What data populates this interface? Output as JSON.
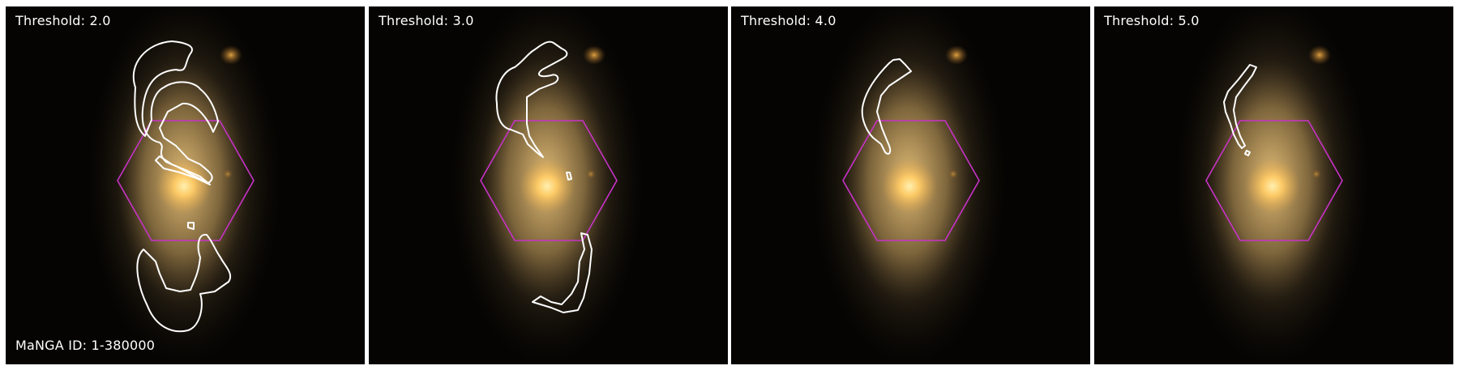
{
  "galaxy": {
    "manga_id_label": "MaNGA ID: 1-380000"
  },
  "panels": [
    {
      "threshold_label": "Threshold: 2.0"
    },
    {
      "threshold_label": "Threshold: 3.0"
    },
    {
      "threshold_label": "Threshold: 4.0"
    },
    {
      "threshold_label": "Threshold: 5.0"
    }
  ],
  "colors": {
    "background": "#050402",
    "galaxy_core": "#ffd27a",
    "galaxy_halo": "#c3a36a",
    "contour": "#ffffff",
    "ifu_hexagon": "#c832c8",
    "label_text": "#ffffff"
  }
}
